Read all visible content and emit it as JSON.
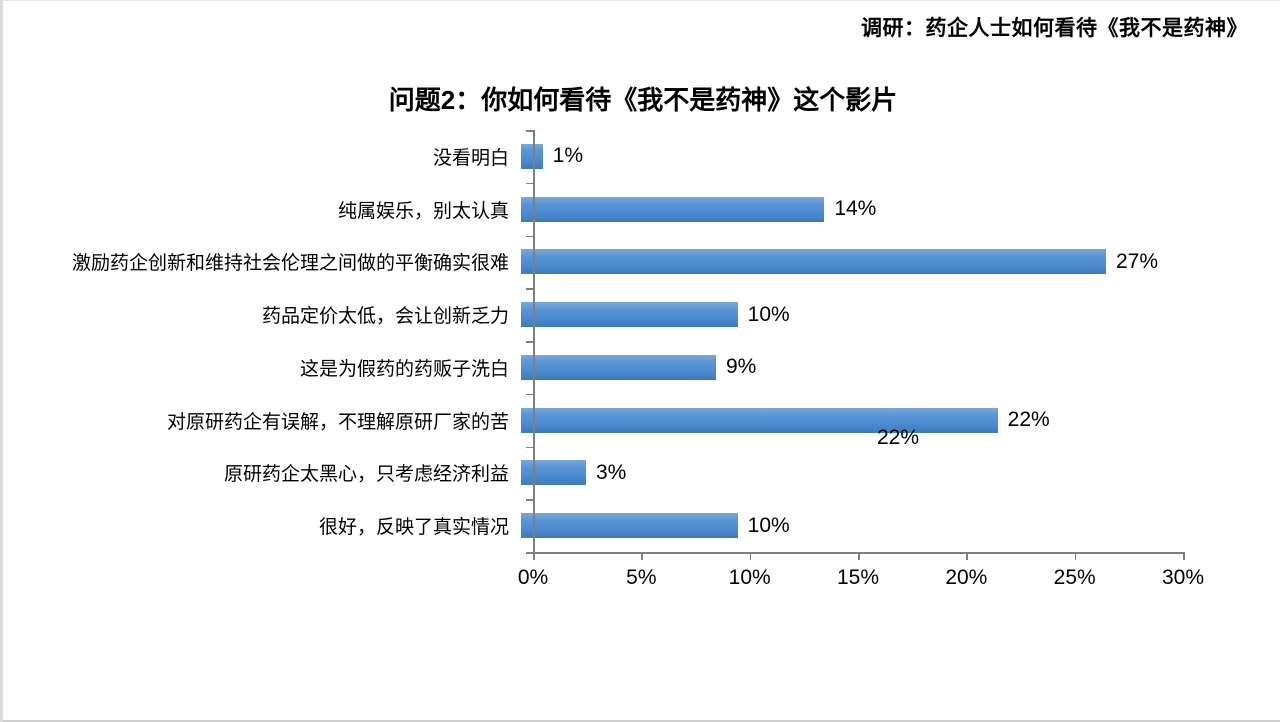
{
  "header": {
    "survey_note": "调研：药企人士如何看待《我不是药神》"
  },
  "chart_data": {
    "type": "bar",
    "orientation": "horizontal",
    "title": "问题2：你如何看待《我不是药神》这个影片",
    "categories": [
      "没看明白",
      "纯属娱乐，别太认真",
      "激励药企创新和维持社会伦理之间做的平衡确实很难",
      "药品定价太低，会让创新乏力",
      "这是为假药的药贩子洗白",
      "对原研药企有误解，不理解原研厂家的苦",
      "原研药企太黑心，只考虑经济利益",
      "很好，反映了真实情况"
    ],
    "values": [
      1,
      14,
      27,
      10,
      9,
      22,
      3,
      10
    ],
    "value_labels": [
      "1%",
      "14%",
      "27%",
      "10%",
      "9%",
      "22%",
      "3%",
      "10%"
    ],
    "stray_label": "22%",
    "x_ticks": [
      "0%",
      "5%",
      "10%",
      "15%",
      "20%",
      "25%",
      "30%"
    ],
    "x_tick_values": [
      0,
      5,
      10,
      15,
      20,
      25,
      30
    ],
    "xlim": [
      0,
      30
    ],
    "xlabel": "",
    "ylabel": "",
    "grid": false,
    "legend": false,
    "bar_color": "#4a8bd0",
    "axis_color": "#7f7f7f"
  }
}
